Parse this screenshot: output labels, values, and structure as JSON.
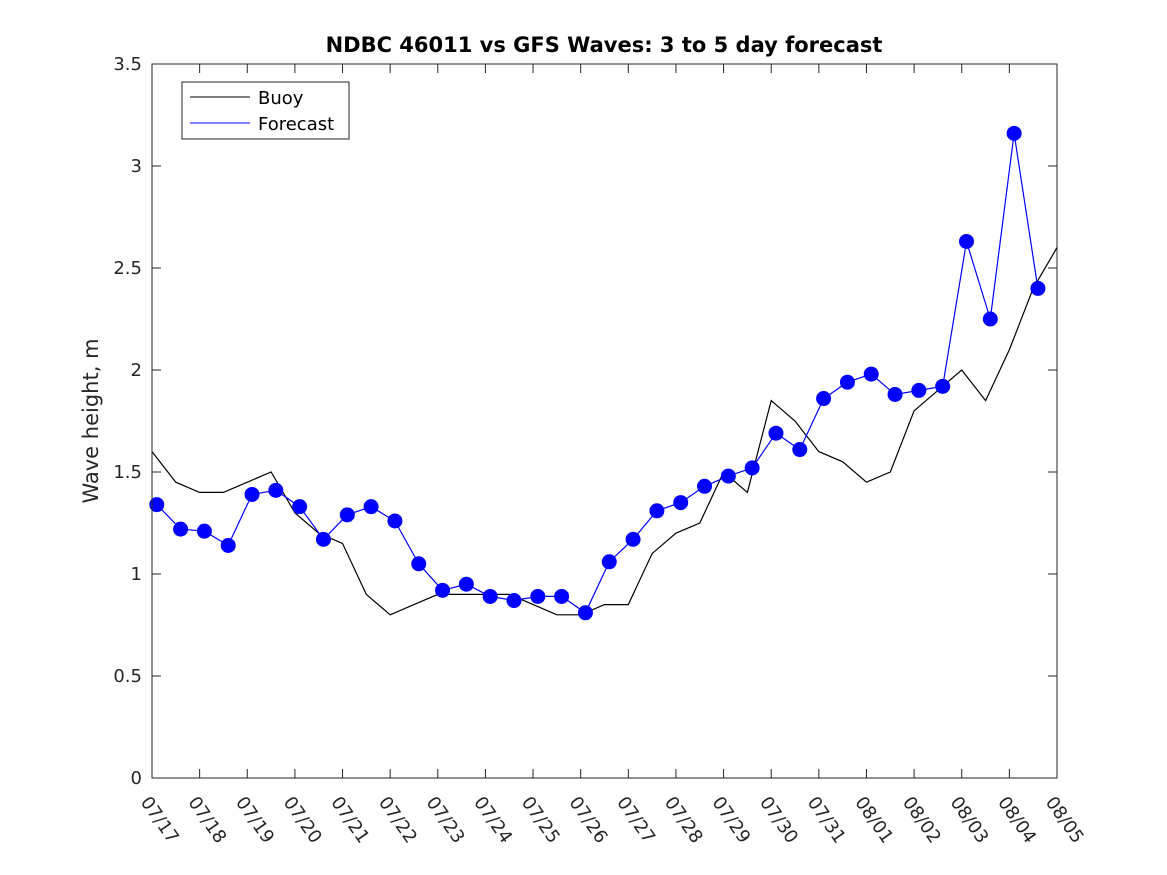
{
  "chart_data": {
    "type": "line",
    "title": "NDBC 46011 vs GFS Waves: 3 to 5 day forecast",
    "xlabel": "",
    "ylabel": "Wave height, m",
    "ylim": [
      0,
      3.5
    ],
    "xlim": [
      "07/17",
      "08/05"
    ],
    "x_ticks": [
      "07/17",
      "07/18",
      "07/19",
      "07/20",
      "07/21",
      "07/22",
      "07/23",
      "07/24",
      "07/25",
      "07/26",
      "07/27",
      "07/28",
      "07/29",
      "07/30",
      "07/31",
      "08/01",
      "08/02",
      "08/03",
      "08/04",
      "08/05"
    ],
    "y_ticks": [
      "0",
      "0.5",
      "1",
      "1.5",
      "2",
      "2.5",
      "3",
      "3.5"
    ],
    "grid": false,
    "legend_position": "top-left",
    "colors": {
      "buoy": "#000000",
      "forecast": "#0000ff"
    },
    "legend": [
      {
        "label": "Buoy",
        "color": "#000000"
      },
      {
        "label": "Forecast",
        "color": "#0000ff"
      }
    ],
    "series": [
      {
        "name": "Buoy",
        "color": "#000000",
        "x": [
          0,
          0.5,
          1.0,
          1.5,
          2.0,
          2.5,
          3.0,
          3.5,
          4.0,
          4.5,
          5.0,
          5.5,
          6.0,
          6.5,
          7.0,
          7.5,
          8.0,
          8.5,
          9.0,
          9.5,
          10.0,
          10.5,
          11.0,
          11.5,
          12.0,
          12.5,
          13.0,
          13.5,
          14.0,
          14.5,
          15.0,
          15.5,
          16.0,
          16.5,
          17.0,
          17.5,
          18.0,
          18.5,
          19.0
        ],
        "y": [
          1.6,
          1.45,
          1.4,
          1.4,
          1.45,
          1.5,
          1.3,
          1.2,
          1.15,
          0.9,
          0.8,
          0.85,
          0.9,
          0.9,
          0.9,
          0.9,
          0.85,
          0.8,
          0.8,
          0.85,
          0.85,
          1.1,
          1.2,
          1.25,
          1.5,
          1.4,
          1.85,
          1.75,
          1.6,
          1.55,
          1.45,
          1.5,
          1.8,
          1.9,
          2.0,
          1.85,
          2.1,
          2.4,
          2.6
        ]
      },
      {
        "name": "Forecast",
        "color": "#0000ff",
        "marker": "circle",
        "x": [
          0.1,
          0.6,
          1.1,
          1.6,
          2.1,
          2.6,
          3.1,
          3.6,
          4.1,
          4.6,
          5.1,
          5.6,
          6.1,
          6.6,
          7.1,
          7.6,
          8.1,
          8.6,
          9.1,
          9.6,
          10.1,
          10.6,
          11.1,
          11.6,
          12.1,
          12.6,
          13.1,
          13.6,
          14.1,
          14.6,
          15.1,
          15.6,
          16.1,
          16.6,
          17.1,
          17.6,
          18.1,
          18.6
        ],
        "y": [
          1.34,
          1.22,
          1.21,
          1.14,
          1.39,
          1.41,
          1.33,
          1.17,
          1.29,
          1.33,
          1.26,
          1.05,
          0.92,
          0.95,
          0.89,
          0.87,
          0.89,
          0.89,
          0.81,
          1.06,
          1.17,
          1.31,
          1.35,
          1.43,
          1.48,
          1.52,
          1.69,
          1.61,
          1.86,
          1.94,
          1.98,
          1.88,
          1.9,
          1.92,
          2.63,
          2.25,
          3.16,
          2.4
        ]
      }
    ]
  }
}
